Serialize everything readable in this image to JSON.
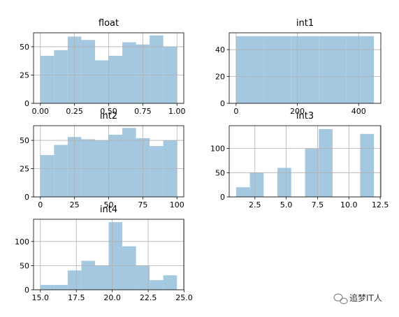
{
  "chart_data": [
    {
      "type": "histogram",
      "title": "float",
      "color": "#a5c8e1",
      "grid": true,
      "bins": [
        0,
        0.1,
        0.2,
        0.3,
        0.4,
        0.5,
        0.6,
        0.7,
        0.8,
        0.9,
        1.0
      ],
      "values": [
        42,
        47,
        59,
        56,
        38,
        42,
        54,
        52,
        60,
        50
      ],
      "xlim": [
        -0.05,
        1.05
      ],
      "ylim": [
        0,
        62.3
      ],
      "xticks": [
        {
          "value": 0,
          "label": "0.00"
        },
        {
          "value": 0.25,
          "label": "0.25"
        },
        {
          "value": 0.5,
          "label": "0.50"
        },
        {
          "value": 0.75,
          "label": "0.75"
        },
        {
          "value": 1,
          "label": "1.00"
        }
      ],
      "yticks": [
        0,
        25,
        50
      ]
    },
    {
      "type": "histogram",
      "title": "int1",
      "color": "#a5c8e1",
      "grid": true,
      "bins": [
        0,
        45,
        90,
        135,
        180,
        225,
        270,
        315,
        360,
        405,
        450
      ],
      "values": [
        50,
        50,
        50,
        50,
        50,
        50,
        50,
        50,
        50,
        50
      ],
      "xlim": [
        -22.5,
        472.5
      ],
      "ylim": [
        0,
        52.5
      ],
      "xticks": [
        0,
        200,
        400
      ],
      "yticks": [
        0,
        20,
        40
      ]
    },
    {
      "type": "histogram",
      "title": "int2",
      "color": "#a5c8e1",
      "grid": true,
      "bins": [
        0,
        10,
        20,
        30,
        40,
        50,
        60,
        70,
        80,
        90,
        100
      ],
      "values": [
        37,
        46,
        53,
        51,
        50,
        55,
        61,
        52,
        45,
        50
      ],
      "xlim": [
        -5,
        105
      ],
      "ylim": [
        0,
        63
      ],
      "xticks": [
        0,
        25,
        50,
        75,
        100
      ],
      "yticks": [
        0,
        25,
        50
      ]
    },
    {
      "type": "histogram",
      "title": "int3",
      "color": "#a5c8e1",
      "grid": true,
      "bins": [
        1,
        2.1,
        3.2,
        4.3,
        5.4,
        6.5,
        7.6,
        8.7,
        9.8,
        10.9,
        12
      ],
      "values": [
        20,
        50,
        0,
        60,
        0,
        100,
        140,
        0,
        0,
        130
      ],
      "xlim": [
        0.45,
        12.55
      ],
      "ylim": [
        0,
        147
      ],
      "xticks": [
        2.5,
        {
          "value": 5,
          "label": "5.0"
        },
        7.5,
        {
          "value": 10,
          "label": "10.0"
        },
        12.5
      ],
      "yticks": [
        0,
        50,
        100
      ]
    },
    {
      "type": "histogram",
      "title": "int4",
      "color": "#a5c8e1",
      "grid": true,
      "bins": [
        15,
        15.95,
        16.9,
        17.85,
        18.8,
        19.75,
        20.7,
        21.65,
        22.6,
        23.55,
        24.5
      ],
      "values": [
        10,
        10,
        40,
        60,
        50,
        140,
        90,
        50,
        20,
        30
      ],
      "xlim": [
        14.525,
        24.975
      ],
      "ylim": [
        0,
        146
      ],
      "xticks": [
        {
          "value": 15,
          "label": "15.0"
        },
        17.5,
        {
          "value": 20,
          "label": "20.0"
        },
        22.5,
        {
          "value": 25,
          "label": "25.0"
        }
      ],
      "yticks": [
        0,
        50,
        100
      ]
    }
  ],
  "watermark": "追梦IT人"
}
